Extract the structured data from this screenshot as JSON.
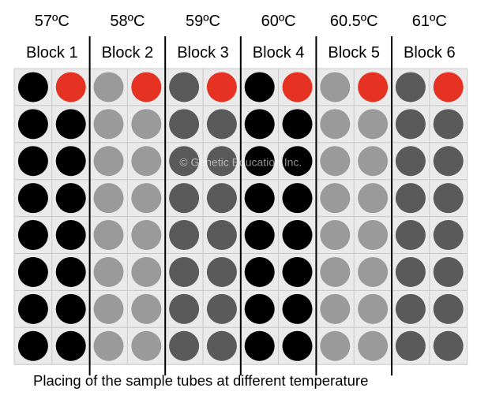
{
  "blocks": [
    {
      "temperature": "57ºC",
      "label": "Block 1",
      "well_color": "#000000"
    },
    {
      "temperature": "58ºC",
      "label": "Block 2",
      "well_color": "#9a9a9a"
    },
    {
      "temperature": "59ºC",
      "label": "Block 3",
      "well_color": "#5a5a5a"
    },
    {
      "temperature": "60ºC",
      "label": "Block 4",
      "well_color": "#000000"
    },
    {
      "temperature": "60.5ºC",
      "label": "Block 5",
      "well_color": "#9a9a9a"
    },
    {
      "temperature": "61ºC",
      "label": "Block 6",
      "well_color": "#5a5a5a"
    }
  ],
  "plate": {
    "rows": 8,
    "columns_per_block": 2,
    "highlight_color": "#e53222",
    "highlight_position": "row 1, second column of each block",
    "cell_color": "#eaeaea",
    "border_color": "#c8c8c8"
  },
  "watermark": "© Genetic Education Inc.",
  "caption": "Placing of the sample tubes at different temperature"
}
